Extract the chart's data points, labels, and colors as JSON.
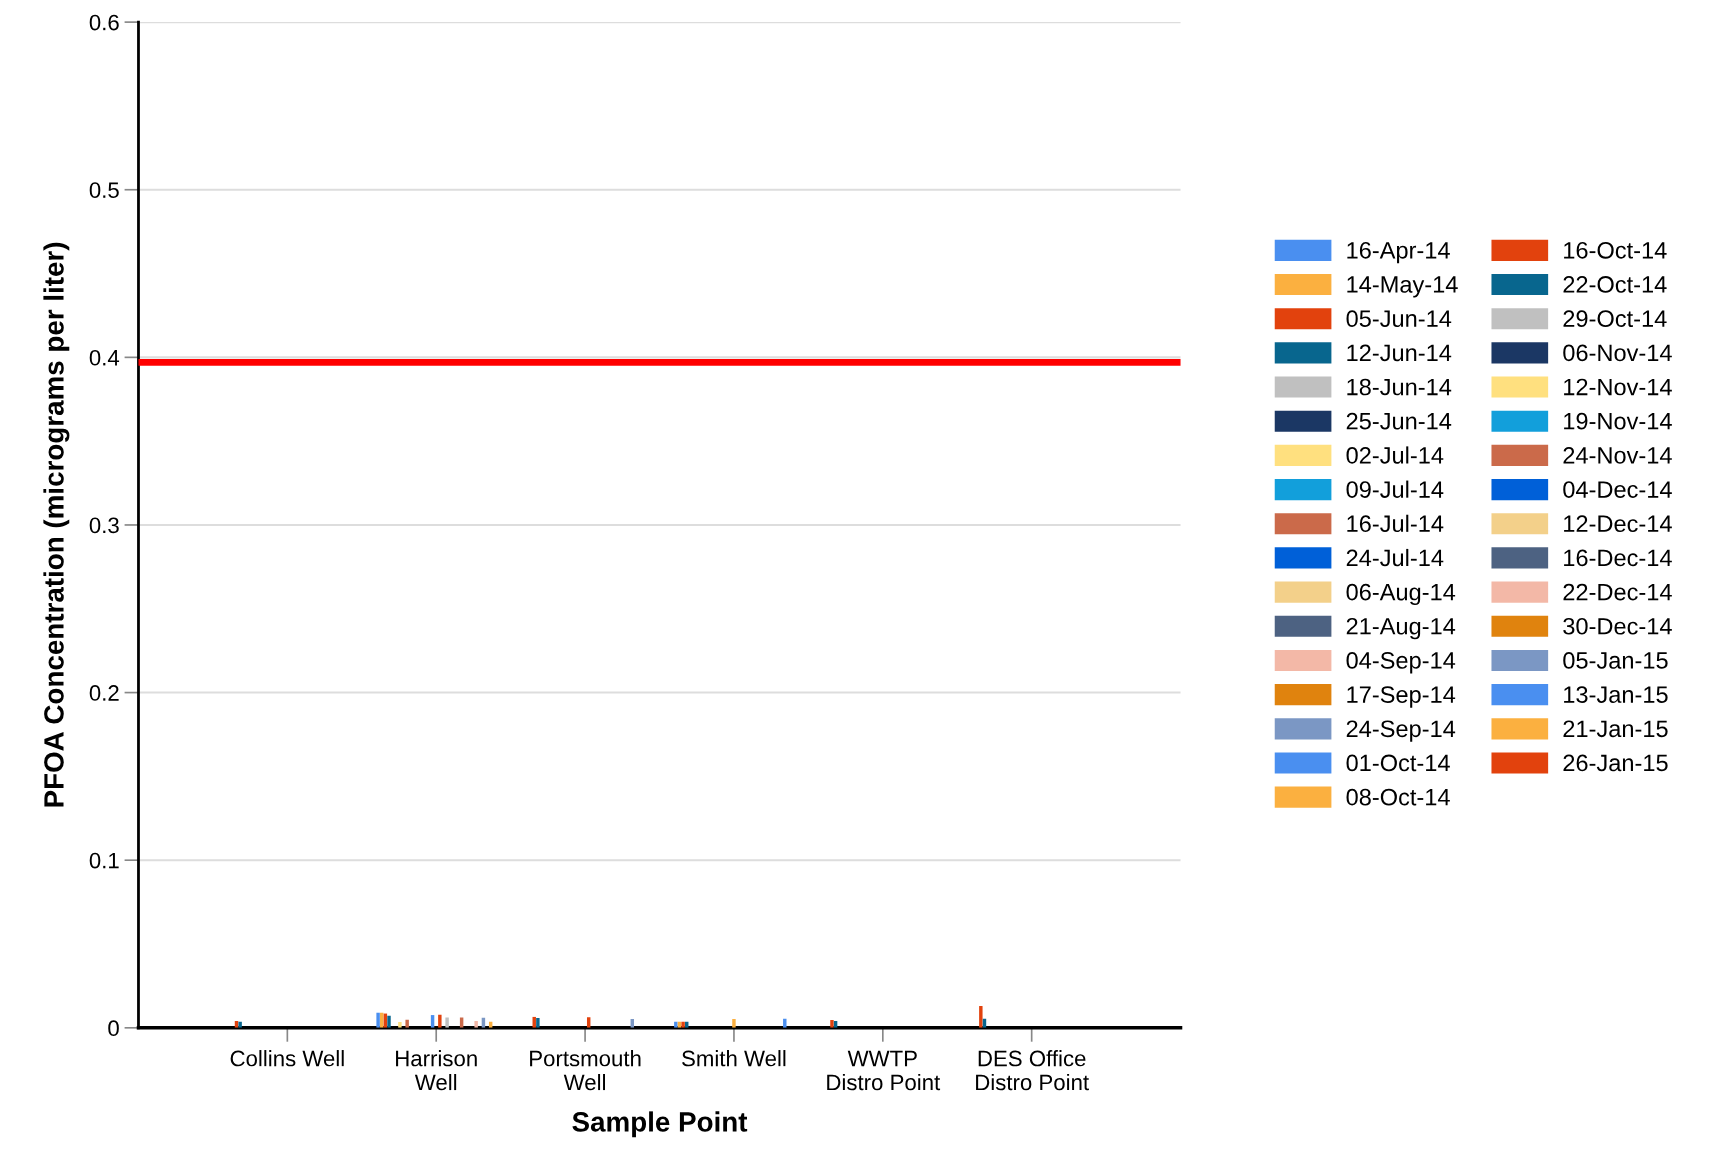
{
  "chart_data": {
    "type": "bar",
    "xlabel": "Sample Point",
    "ylabel": "PFOA Concentration (micrograms per liter)",
    "categories": [
      "Collins Well",
      "Harrison\nWell",
      "Portsmouth\nWell",
      "Smith Well",
      "WWTP\nDistro Point",
      "DES Office\nDistro Point"
    ],
    "ylim": [
      0,
      0.6
    ],
    "yticks": [
      0,
      0.1,
      0.2,
      0.3,
      0.4,
      0.5,
      0.6
    ],
    "grid": "y",
    "legend": "right",
    "ref_lines": [
      {
        "axis": "y",
        "value": 0.397,
        "color": "#ff0000"
      }
    ],
    "series": [
      {
        "name": "16-Apr-14",
        "color": "#4a8ff0",
        "values": [
          null,
          0.009,
          null,
          0.0036,
          null,
          null
        ]
      },
      {
        "name": "14-May-14",
        "color": "#fbb040",
        "values": [
          null,
          0.009,
          null,
          0.0036,
          null,
          null
        ]
      },
      {
        "name": "05-Jun-14",
        "color": "#e2420d",
        "values": [
          0.004,
          0.0085,
          0.0065,
          0.0036,
          0.0046,
          0.013
        ]
      },
      {
        "name": "12-Jun-14",
        "color": "#08668e",
        "values": [
          0.0036,
          0.0072,
          0.0058,
          0.0036,
          0.004,
          0.0054
        ]
      },
      {
        "name": "18-Jun-14",
        "color": "#c0c0c0",
        "values": [
          null,
          null,
          null,
          null,
          null,
          null
        ]
      },
      {
        "name": "25-Jun-14",
        "color": "#1b3764",
        "values": [
          null,
          null,
          null,
          null,
          null,
          null
        ]
      },
      {
        "name": "02-Jul-14",
        "color": "#ffe07f",
        "values": [
          null,
          0.0034,
          null,
          null,
          null,
          null
        ]
      },
      {
        "name": "09-Jul-14",
        "color": "#129fdb",
        "values": [
          null,
          null,
          null,
          null,
          null,
          null
        ]
      },
      {
        "name": "16-Jul-14",
        "color": "#cb6a4a",
        "values": [
          null,
          0.0048,
          null,
          null,
          null,
          null
        ]
      },
      {
        "name": "24-Jul-14",
        "color": "#0060d8",
        "values": [
          null,
          null,
          null,
          null,
          null,
          null
        ]
      },
      {
        "name": "06-Aug-14",
        "color": "#f3d08a",
        "values": [
          null,
          null,
          null,
          null,
          null,
          null
        ]
      },
      {
        "name": "21-Aug-14",
        "color": "#4d6282",
        "values": [
          null,
          null,
          null,
          null,
          null,
          null
        ]
      },
      {
        "name": "04-Sep-14",
        "color": "#f3b8a7",
        "values": [
          null,
          null,
          null,
          null,
          null,
          null
        ]
      },
      {
        "name": "17-Sep-14",
        "color": "#e0830e",
        "values": [
          null,
          null,
          null,
          null,
          null,
          null
        ]
      },
      {
        "name": "24-Sep-14",
        "color": "#7b97c4",
        "values": [
          null,
          null,
          null,
          null,
          null,
          null
        ]
      },
      {
        "name": "01-Oct-14",
        "color": "#4a8ff0",
        "values": [
          null,
          0.0076,
          null,
          null,
          null,
          null
        ]
      },
      {
        "name": "08-Oct-14",
        "color": "#fbb040",
        "values": [
          null,
          null,
          null,
          0.0052,
          null,
          null
        ]
      },
      {
        "name": "16-Oct-14",
        "color": "#e2420d",
        "values": [
          null,
          0.0078,
          0.0063,
          null,
          null,
          null
        ]
      },
      {
        "name": "22-Oct-14",
        "color": "#08668e",
        "values": [
          null,
          null,
          null,
          null,
          null,
          null
        ]
      },
      {
        "name": "29-Oct-14",
        "color": "#c0c0c0",
        "values": [
          null,
          0.0061,
          null,
          null,
          null,
          null
        ]
      },
      {
        "name": "06-Nov-14",
        "color": "#1b3764",
        "values": [
          null,
          null,
          null,
          null,
          null,
          null
        ]
      },
      {
        "name": "12-Nov-14",
        "color": "#ffe07f",
        "values": [
          null,
          null,
          null,
          null,
          null,
          null
        ]
      },
      {
        "name": "19-Nov-14",
        "color": "#129fdb",
        "values": [
          null,
          null,
          null,
          null,
          null,
          null
        ]
      },
      {
        "name": "24-Nov-14",
        "color": "#cb6a4a",
        "values": [
          null,
          0.0061,
          null,
          null,
          null,
          null
        ]
      },
      {
        "name": "04-Dec-14",
        "color": "#0060d8",
        "values": [
          null,
          null,
          null,
          null,
          null,
          null
        ]
      },
      {
        "name": "12-Dec-14",
        "color": "#f3d08a",
        "values": [
          null,
          null,
          null,
          null,
          null,
          null
        ]
      },
      {
        "name": "16-Dec-14",
        "color": "#4d6282",
        "values": [
          null,
          null,
          null,
          null,
          null,
          null
        ]
      },
      {
        "name": "22-Dec-14",
        "color": "#f3b8a7",
        "values": [
          null,
          0.004,
          null,
          null,
          null,
          null
        ]
      },
      {
        "name": "30-Dec-14",
        "color": "#e0830e",
        "values": [
          null,
          null,
          null,
          null,
          null,
          null
        ]
      },
      {
        "name": "05-Jan-15",
        "color": "#7b97c4",
        "values": [
          null,
          0.006,
          0.0052,
          null,
          null,
          null
        ]
      },
      {
        "name": "13-Jan-15",
        "color": "#4a8ff0",
        "values": [
          null,
          null,
          null,
          0.0054,
          null,
          null
        ]
      },
      {
        "name": "21-Jan-15",
        "color": "#fbb040",
        "values": [
          null,
          0.0036,
          null,
          null,
          null,
          null
        ]
      },
      {
        "name": "26-Jan-15",
        "color": "#e2420d",
        "values": [
          null,
          null,
          null,
          null,
          null,
          null
        ]
      }
    ]
  }
}
